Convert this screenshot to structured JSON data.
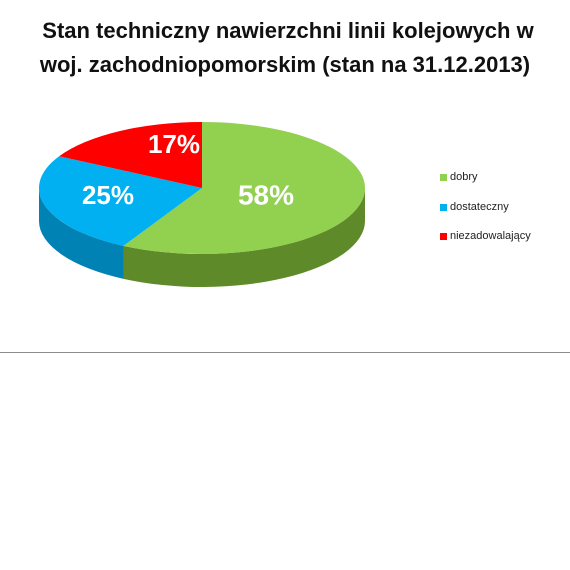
{
  "chart_data": {
    "type": "pie",
    "title_lines": [
      "Stan techniczny nawierzchni linii kolejowych w",
      "woj. zachodniopomorskim (stan na 31.12.2013)"
    ],
    "legend_position": "right",
    "style": "3d",
    "slices": [
      {
        "label": "dobry",
        "value": 58,
        "value_label": "58%",
        "color": "#92d050",
        "side_color": "#5f8a2a"
      },
      {
        "label": "dostateczny",
        "value": 25,
        "value_label": "25%",
        "color": "#00b0f0",
        "side_color": "#0082b4"
      },
      {
        "label": "niezadowalający",
        "value": 17,
        "value_label": "17%",
        "color": "#ff0000",
        "side_color": "#b30000"
      }
    ]
  }
}
